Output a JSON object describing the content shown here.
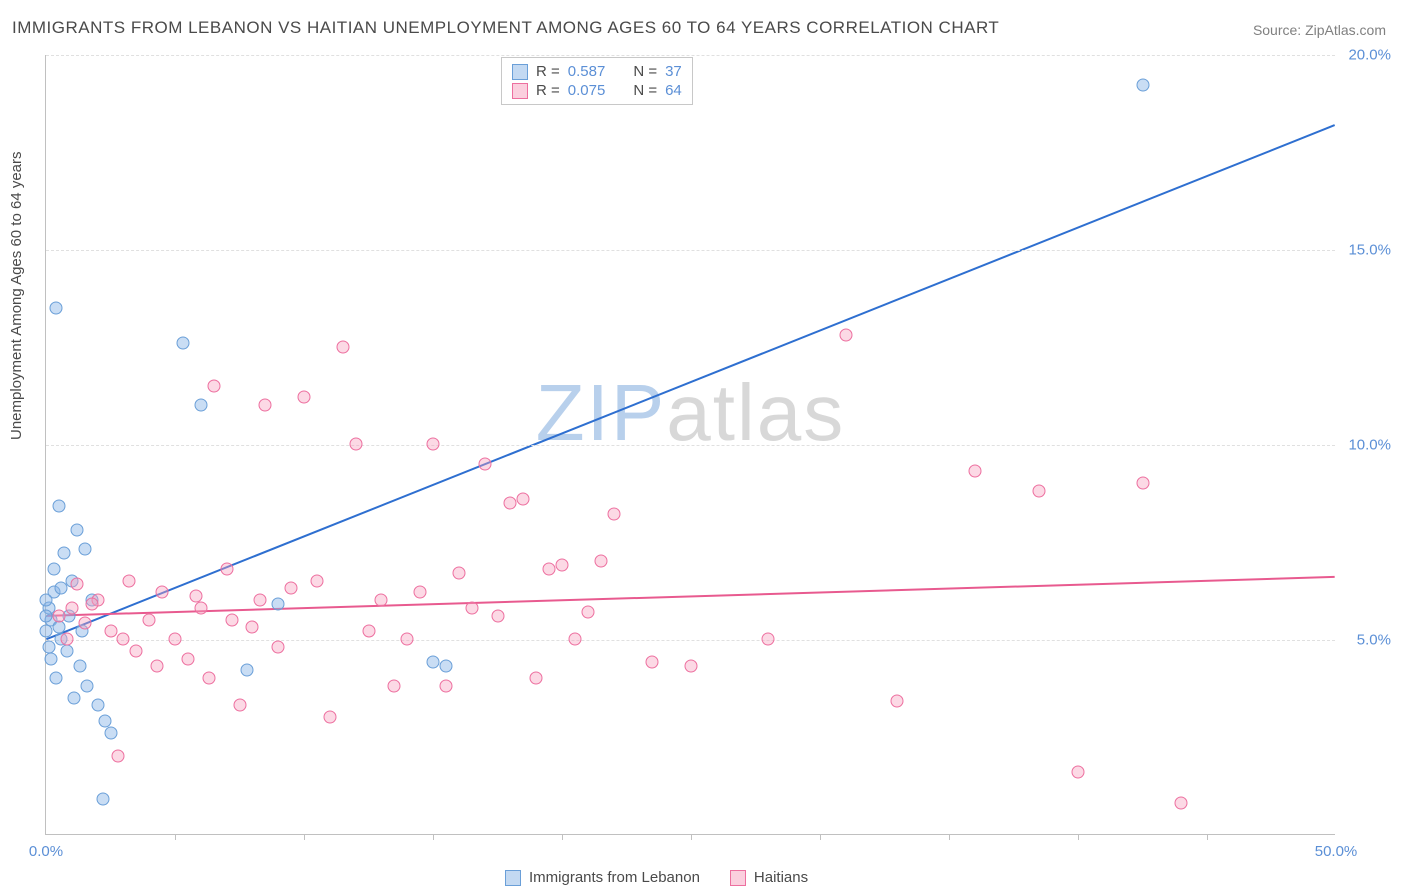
{
  "title": "IMMIGRANTS FROM LEBANON VS HAITIAN UNEMPLOYMENT AMONG AGES 60 TO 64 YEARS CORRELATION CHART",
  "source": "Source: ZipAtlas.com",
  "y_axis_label": "Unemployment Among Ages 60 to 64 years",
  "watermark_a": "ZIP",
  "watermark_b": "atlas",
  "chart": {
    "type": "scatter",
    "background_color": "#ffffff",
    "grid_color": "#e0e0e0",
    "axis_color": "#c0c0c0",
    "label_color": "#5b8fd6",
    "title_fontsize": 17,
    "label_fontsize": 15,
    "xlim": [
      0,
      50
    ],
    "ylim": [
      0,
      20
    ],
    "y_ticks": [
      {
        "v": 5,
        "label": "5.0%"
      },
      {
        "v": 10,
        "label": "10.0%"
      },
      {
        "v": 15,
        "label": "15.0%"
      },
      {
        "v": 20,
        "label": "20.0%"
      }
    ],
    "x_ticks_minor": [
      5,
      10,
      15,
      20,
      25,
      30,
      35,
      40,
      45
    ],
    "x_tick_labels": [
      {
        "v": 0,
        "label": "0.0%"
      },
      {
        "v": 50,
        "label": "50.0%"
      }
    ],
    "series": [
      {
        "name": "Immigrants from Lebanon",
        "color_fill": "rgba(135,180,230,0.45)",
        "color_stroke": "#6a9fd8",
        "line_color": "#2e6fd0",
        "marker_size": 13,
        "R": "0.587",
        "N": "37",
        "trend": {
          "x1": 0,
          "y1": 5.0,
          "x2": 50,
          "y2": 18.2
        },
        "points": [
          [
            0.4,
            13.5
          ],
          [
            0.0,
            5.2
          ],
          [
            0.2,
            5.5
          ],
          [
            0.1,
            5.8
          ],
          [
            0.3,
            6.2
          ],
          [
            0.5,
            8.4
          ],
          [
            0.7,
            7.2
          ],
          [
            1.2,
            7.8
          ],
          [
            1.5,
            7.3
          ],
          [
            1.0,
            6.5
          ],
          [
            1.8,
            6.0
          ],
          [
            0.6,
            5.0
          ],
          [
            0.8,
            4.7
          ],
          [
            1.3,
            4.3
          ],
          [
            1.6,
            3.8
          ],
          [
            2.0,
            3.3
          ],
          [
            2.3,
            2.9
          ],
          [
            2.5,
            2.6
          ],
          [
            0.4,
            4.0
          ],
          [
            0.9,
            5.6
          ],
          [
            1.4,
            5.2
          ],
          [
            2.2,
            0.9
          ],
          [
            5.3,
            12.6
          ],
          [
            6.0,
            11.0
          ],
          [
            7.8,
            4.2
          ],
          [
            9.0,
            5.9
          ],
          [
            15.0,
            4.4
          ],
          [
            15.5,
            4.3
          ],
          [
            42.5,
            19.2
          ],
          [
            0.3,
            6.8
          ],
          [
            0.6,
            6.3
          ],
          [
            0.2,
            4.5
          ],
          [
            1.1,
            3.5
          ],
          [
            0.0,
            6.0
          ],
          [
            0.1,
            4.8
          ],
          [
            0.5,
            5.3
          ],
          [
            0.0,
            5.6
          ]
        ]
      },
      {
        "name": "Haitians",
        "color_fill": "rgba(248,160,190,0.4)",
        "color_stroke": "#ed6f9f",
        "line_color": "#e85a8f",
        "marker_size": 13,
        "R": "0.075",
        "N": "64",
        "trend": {
          "x1": 0,
          "y1": 5.6,
          "x2": 50,
          "y2": 6.6
        },
        "points": [
          [
            0.5,
            5.6
          ],
          [
            1.0,
            5.8
          ],
          [
            1.5,
            5.4
          ],
          [
            2.0,
            6.0
          ],
          [
            2.5,
            5.2
          ],
          [
            3.0,
            5.0
          ],
          [
            3.5,
            4.7
          ],
          [
            4.0,
            5.5
          ],
          [
            4.5,
            6.2
          ],
          [
            5.0,
            5.0
          ],
          [
            5.5,
            4.5
          ],
          [
            6.0,
            5.8
          ],
          [
            6.5,
            11.5
          ],
          [
            7.0,
            6.8
          ],
          [
            7.5,
            3.3
          ],
          [
            8.0,
            5.3
          ],
          [
            8.5,
            11.0
          ],
          [
            9.0,
            4.8
          ],
          [
            9.5,
            6.3
          ],
          [
            10.0,
            11.2
          ],
          [
            10.5,
            6.5
          ],
          [
            11.0,
            3.0
          ],
          [
            11.5,
            12.5
          ],
          [
            12.0,
            10.0
          ],
          [
            12.5,
            5.2
          ],
          [
            13.0,
            6.0
          ],
          [
            13.5,
            3.8
          ],
          [
            14.0,
            5.0
          ],
          [
            14.5,
            6.2
          ],
          [
            15.0,
            10.0
          ],
          [
            15.5,
            3.8
          ],
          [
            16.0,
            6.7
          ],
          [
            16.5,
            5.8
          ],
          [
            17.0,
            9.5
          ],
          [
            17.5,
            5.6
          ],
          [
            18.0,
            8.5
          ],
          [
            18.5,
            8.6
          ],
          [
            19.0,
            4.0
          ],
          [
            19.5,
            6.8
          ],
          [
            20.0,
            6.9
          ],
          [
            20.5,
            5.0
          ],
          [
            21.0,
            5.7
          ],
          [
            21.5,
            7.0
          ],
          [
            22.0,
            8.2
          ],
          [
            23.5,
            4.4
          ],
          [
            25.0,
            4.3
          ],
          [
            28.0,
            5.0
          ],
          [
            31.0,
            12.8
          ],
          [
            33.0,
            3.4
          ],
          [
            36.0,
            9.3
          ],
          [
            38.5,
            8.8
          ],
          [
            40.0,
            1.6
          ],
          [
            42.5,
            9.0
          ],
          [
            44.0,
            0.8
          ],
          [
            1.2,
            6.4
          ],
          [
            2.8,
            2.0
          ],
          [
            3.2,
            6.5
          ],
          [
            4.3,
            4.3
          ],
          [
            5.8,
            6.1
          ],
          [
            6.3,
            4.0
          ],
          [
            7.2,
            5.5
          ],
          [
            8.3,
            6.0
          ],
          [
            0.8,
            5.0
          ],
          [
            1.8,
            5.9
          ]
        ]
      }
    ]
  },
  "legend_bottom": [
    {
      "label": "Immigrants from Lebanon",
      "cls": "blue"
    },
    {
      "label": "Haitians",
      "cls": "pink"
    }
  ]
}
